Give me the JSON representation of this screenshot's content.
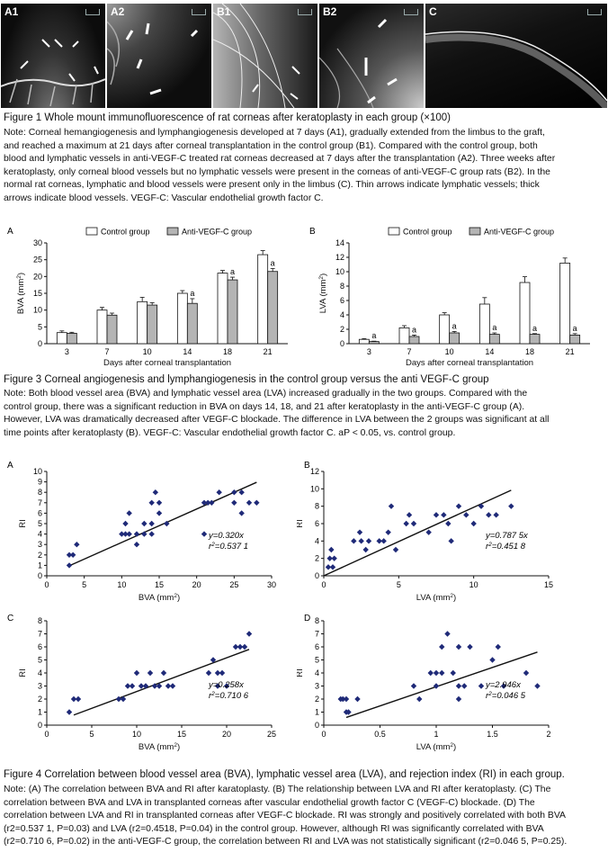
{
  "figure1": {
    "panels": [
      {
        "label": "A1"
      },
      {
        "label": "A2"
      },
      {
        "label": "B1"
      },
      {
        "label": "B2"
      },
      {
        "label": "C"
      }
    ],
    "title": "Figure 1   Whole mount immunofluorescence of rat corneas after keratoplasty in each group (×100)",
    "note": [
      "Note: Corneal hemangiogenesis and lymphangiogenesis developed at 7 days (A1), gradually extended from the limbus to the graft,",
      "and reached a maximum at 21 days after corneal transplantation in the control group (B1). Compared with the control group, both",
      "blood and lymphatic vessels in anti-VEGF-C treated rat corneas decreased at 7 days after the transplantation (A2). Three weeks after",
      "keratoplasty, only corneal blood vessels but no lymphatic vessels were present in the corneas of anti-VEGF-C group rats (B2). In the",
      "normal rat corneas, lymphatic and blood vessels were present only in the limbus (C). Thin arrows indicate lymphatic vessels; thick",
      "arrows indicate blood vessels. VEGF-C: Vascular endothelial growth factor C."
    ]
  },
  "figure3": {
    "title": "Figure 3    Corneal angiogenesis and lymphangiogenesis in the control group versus the anti VEGF-C group",
    "note": [
      "Note: Both blood vessel area (BVA) and lymphatic vessel area (LVA) increased gradually in the two groups. Compared with the",
      "control group, there was a significant reduction in BVA on days 14, 18, and 21 after keratoplasty in the anti-VEGF-C group (A).",
      "However, LVA was dramatically decreased after VEGF-C blockade. The difference in LVA between the 2 groups was significant at all",
      "time points after keratoplasty (B). VEGF-C: Vascular endothelial growth factor C. aP < 0.05, vs. control group."
    ]
  },
  "figure4": {
    "title": "Figure 4    Correlation between blood vessel area (BVA), lymphatic vessel area (LVA), and rejection index (RI) in each group.",
    "note": [
      "Note: (A) The correlation between BVA and RI after karatoplasty. (B) The relationship between LVA and RI after keratoplasty. (C) The",
      "correlation between BVA and LVA in transplanted corneas after vascular endothelial growth factor C (VEGF-C) blockade. (D) The",
      "correlation between LVA and RI in transplanted corneas after VEGF-C blockade. RI was strongly and positively correlated with both BVA",
      "(r2=0.537 1, P=0.03) and LVA (r2=0.4518, P=0.04) in the control group. However, although RI was significantly correlated with BVA",
      "(r2=0.710 6, P=0.02) in the anti-VEGF-C group, the correlation between RI and LVA was not statistically significant (r2=0.046 5, P=0.25)."
    ]
  },
  "colors": {
    "bar_control": "#ffffff",
    "bar_anti": "#b4b4b4",
    "point": "#1f2a78"
  },
  "chart_data": [
    {
      "panel": "A",
      "type": "bar",
      "categories": [
        "3",
        "7",
        "10",
        "14",
        "18",
        "21"
      ],
      "series": [
        {
          "name": "Control group",
          "values": [
            3.3,
            10.0,
            12.5,
            15.0,
            21.0,
            26.5
          ],
          "err": [
            0.5,
            0.8,
            1.3,
            0.8,
            0.8,
            1.2
          ]
        },
        {
          "name": "Anti-VEGF-C group",
          "values": [
            3.1,
            8.5,
            11.5,
            12.0,
            19.0,
            21.5
          ],
          "err": [
            0.3,
            0.6,
            0.7,
            1.4,
            0.8,
            0.9
          ]
        }
      ],
      "sig": [
        false,
        false,
        false,
        true,
        true,
        true
      ],
      "sig_label": "a",
      "ylabel": "BVA (mm2)",
      "xlabel": "Days after corneal transplantation",
      "ylim": [
        0,
        30
      ],
      "yticks": [
        0,
        5,
        10,
        15,
        20,
        25,
        30
      ]
    },
    {
      "panel": "B",
      "type": "bar",
      "categories": [
        "3",
        "7",
        "10",
        "14",
        "18",
        "21"
      ],
      "series": [
        {
          "name": "Control group",
          "values": [
            0.6,
            2.2,
            4.0,
            5.5,
            8.5,
            11.2
          ],
          "err": [
            0.1,
            0.3,
            0.3,
            0.9,
            0.8,
            0.7
          ]
        },
        {
          "name": "Anti-VEGF-C group",
          "values": [
            0.3,
            1.0,
            1.5,
            1.3,
            1.3,
            1.2
          ],
          "err": [
            0.05,
            0.2,
            0.2,
            0.2,
            0.1,
            0.2
          ]
        }
      ],
      "sig": [
        true,
        true,
        true,
        true,
        true,
        true
      ],
      "sig_label": "a",
      "ylabel": "LVA (mm2)",
      "xlabel": "Days after corneal transplantation",
      "ylim": [
        0,
        14
      ],
      "yticks": [
        0,
        2,
        4,
        6,
        8,
        10,
        12,
        14
      ]
    },
    {
      "panel": "A",
      "type": "scatter",
      "xlabel": "BVA (mm2)",
      "ylabel": "RI",
      "xlim": [
        0,
        30
      ],
      "ylim": [
        0,
        10
      ],
      "xticks": [
        0,
        5,
        10,
        15,
        20,
        25,
        30
      ],
      "yticks": [
        0,
        1,
        2,
        3,
        4,
        5,
        6,
        7,
        8,
        9,
        10
      ],
      "equation": "y=0.320x",
      "r2": "r2=0.537 1",
      "slope": 0.32,
      "fit_x": [
        3,
        28
      ],
      "points": [
        [
          3,
          1
        ],
        [
          3,
          2
        ],
        [
          3.5,
          2
        ],
        [
          4,
          3
        ],
        [
          10,
          4
        ],
        [
          10.5,
          4
        ],
        [
          10.5,
          5
        ],
        [
          11,
          4
        ],
        [
          11,
          6
        ],
        [
          12,
          3
        ],
        [
          12,
          4
        ],
        [
          13,
          4
        ],
        [
          13,
          5
        ],
        [
          14,
          5
        ],
        [
          14,
          4
        ],
        [
          14,
          7
        ],
        [
          14.5,
          8
        ],
        [
          15,
          6
        ],
        [
          15,
          7
        ],
        [
          16,
          5
        ],
        [
          21,
          7
        ],
        [
          21,
          4
        ],
        [
          22,
          7
        ],
        [
          21.5,
          7
        ],
        [
          23,
          8
        ],
        [
          25,
          8
        ],
        [
          25,
          7
        ],
        [
          26,
          8
        ],
        [
          26,
          6
        ],
        [
          27,
          7
        ],
        [
          28,
          7
        ]
      ]
    },
    {
      "panel": "B",
      "type": "scatter",
      "xlabel": "LVA (mm2)",
      "ylabel": "RI",
      "xlim": [
        0,
        15
      ],
      "ylim": [
        0,
        12
      ],
      "xticks": [
        0,
        5,
        10,
        15
      ],
      "yticks": [
        0,
        2,
        4,
        6,
        8,
        10,
        12
      ],
      "equation": "y=0.787 5x",
      "r2": "r2=0.451 8",
      "slope": 0.7875,
      "fit_x": [
        0,
        12.5
      ],
      "points": [
        [
          0.3,
          1
        ],
        [
          0.4,
          2
        ],
        [
          0.5,
          3
        ],
        [
          0.6,
          1
        ],
        [
          0.7,
          2
        ],
        [
          2,
          4
        ],
        [
          2.4,
          5
        ],
        [
          2.5,
          4
        ],
        [
          2.8,
          3
        ],
        [
          3,
          4
        ],
        [
          3.7,
          4
        ],
        [
          4,
          4
        ],
        [
          4.3,
          5
        ],
        [
          4.5,
          8
        ],
        [
          4.8,
          3
        ],
        [
          5.5,
          6
        ],
        [
          5.7,
          7
        ],
        [
          6,
          6
        ],
        [
          7,
          5
        ],
        [
          7.5,
          7
        ],
        [
          8,
          7
        ],
        [
          8.3,
          6
        ],
        [
          8.5,
          4
        ],
        [
          9,
          8
        ],
        [
          9.5,
          7
        ],
        [
          10,
          6
        ],
        [
          10.5,
          8
        ],
        [
          11,
          7
        ],
        [
          11.5,
          7
        ],
        [
          12.5,
          8
        ]
      ]
    },
    {
      "panel": "C",
      "type": "scatter",
      "xlabel": "BVA (mm2)",
      "ylabel": "RI",
      "xlim": [
        0,
        25
      ],
      "ylim": [
        0,
        8
      ],
      "xticks": [
        0,
        5,
        10,
        15,
        20,
        25
      ],
      "yticks": [
        0,
        1,
        2,
        3,
        4,
        5,
        6,
        7,
        8
      ],
      "equation": "y=0.258x",
      "r2": "r2=0.710 6",
      "slope": 0.258,
      "fit_x": [
        3,
        22.5
      ],
      "points": [
        [
          2.5,
          1
        ],
        [
          3,
          2
        ],
        [
          3.5,
          2
        ],
        [
          8,
          2
        ],
        [
          8.5,
          2
        ],
        [
          9,
          3
        ],
        [
          9.5,
          3
        ],
        [
          10,
          4
        ],
        [
          10.5,
          3
        ],
        [
          11,
          3
        ],
        [
          11.5,
          4
        ],
        [
          12,
          3
        ],
        [
          12.5,
          3
        ],
        [
          13,
          4
        ],
        [
          13.5,
          3
        ],
        [
          14,
          3
        ],
        [
          18,
          4
        ],
        [
          18.5,
          5
        ],
        [
          19,
          4
        ],
        [
          19,
          3
        ],
        [
          19.5,
          4
        ],
        [
          20,
          3
        ],
        [
          21,
          6
        ],
        [
          21.5,
          6
        ],
        [
          22,
          6
        ],
        [
          22.5,
          7
        ]
      ]
    },
    {
      "panel": "D",
      "type": "scatter",
      "xlabel": "LVA (mm2)",
      "ylabel": "RI",
      "xlim": [
        0,
        2
      ],
      "ylim": [
        0,
        8
      ],
      "xticks": [
        0,
        0.5,
        1,
        1.5,
        2
      ],
      "yticks": [
        0,
        1,
        2,
        3,
        4,
        5,
        6,
        7,
        8
      ],
      "equation": "y=2.946x",
      "r2": "r2=0.046 5",
      "slope": 2.946,
      "fit_x": [
        0.2,
        1.9
      ],
      "points": [
        [
          0.15,
          2
        ],
        [
          0.17,
          2
        ],
        [
          0.2,
          1
        ],
        [
          0.2,
          2
        ],
        [
          0.22,
          1
        ],
        [
          0.3,
          2
        ],
        [
          0.8,
          3
        ],
        [
          0.85,
          2
        ],
        [
          0.95,
          4
        ],
        [
          1,
          3
        ],
        [
          1,
          4
        ],
        [
          1.05,
          6
        ],
        [
          1.05,
          4
        ],
        [
          1.1,
          7
        ],
        [
          1.15,
          4
        ],
        [
          1.2,
          6
        ],
        [
          1.2,
          3
        ],
        [
          1.2,
          2
        ],
        [
          1.25,
          3
        ],
        [
          1.3,
          6
        ],
        [
          1.4,
          3
        ],
        [
          1.5,
          5
        ],
        [
          1.55,
          6
        ],
        [
          1.6,
          3
        ],
        [
          1.8,
          4
        ],
        [
          1.9,
          3
        ]
      ]
    }
  ]
}
